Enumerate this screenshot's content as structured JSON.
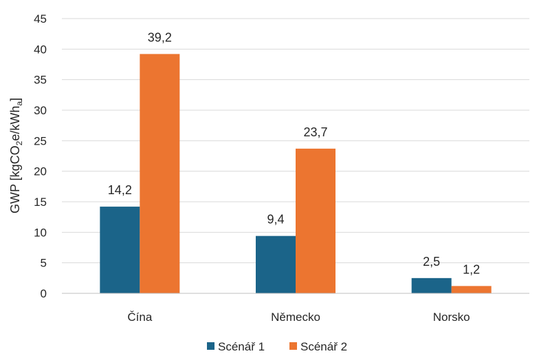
{
  "chart_data": {
    "type": "bar",
    "categories": [
      "Čína",
      "Německo",
      "Norsko"
    ],
    "series": [
      {
        "name": "Scénář 1",
        "values": [
          14.2,
          9.4,
          2.5
        ],
        "color": "#1b6489"
      },
      {
        "name": "Scénář 2",
        "values": [
          39.2,
          23.7,
          1.2
        ],
        "color": "#ec7530"
      }
    ],
    "data_labels": [
      [
        "14,2",
        "9,4",
        "2,5"
      ],
      [
        "39,2",
        "23,7",
        "1,2"
      ]
    ],
    "ylabel": {
      "main": "GWP [kgCO",
      "sub1": "2",
      "mid": "e/kWh",
      "sub2": "a",
      "end": "]"
    },
    "ylim": [
      0,
      45
    ],
    "yticks": [
      0,
      5,
      10,
      15,
      20,
      25,
      30,
      35,
      40,
      45
    ],
    "grid": true,
    "legend_position": "bottom"
  }
}
